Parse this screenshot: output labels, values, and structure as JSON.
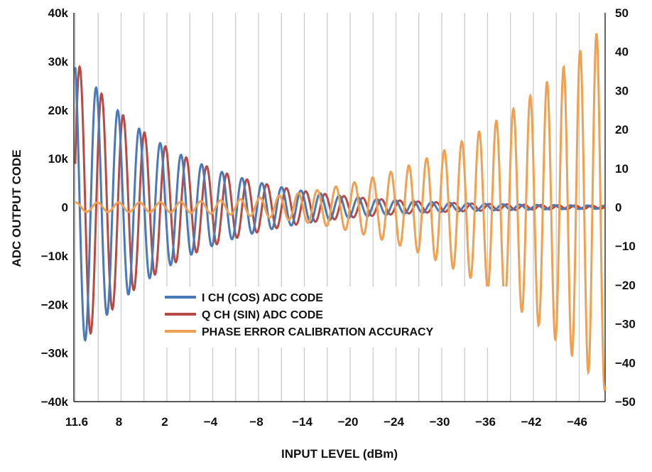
{
  "chart_data": {
    "type": "line",
    "xlabel": "INPUT LEVEL (dBm)",
    "ylabel": "ADC OUTPUT CODE",
    "x_tick_labels": [
      "11.6",
      "8",
      "2",
      "−4",
      "−8",
      "−14",
      "−20",
      "−24",
      "−30",
      "−36",
      "−42",
      "−46"
    ],
    "ylim_left": [
      -40000,
      40000
    ],
    "y_ticks_left": [
      {
        "value": 40000,
        "label": "40k"
      },
      {
        "value": 30000,
        "label": "30k"
      },
      {
        "value": 20000,
        "label": "20k"
      },
      {
        "value": 10000,
        "label": "10k"
      },
      {
        "value": 0,
        "label": "0"
      },
      {
        "value": -10000,
        "label": "−10k"
      },
      {
        "value": -20000,
        "label": "−20k"
      },
      {
        "value": -30000,
        "label": "−30k"
      },
      {
        "value": -40000,
        "label": "−40k"
      }
    ],
    "ylim_right": [
      -50,
      50
    ],
    "y_ticks_right": [
      {
        "value": 50,
        "label": "50"
      },
      {
        "value": 40,
        "label": "40"
      },
      {
        "value": 30,
        "label": "30"
      },
      {
        "value": 20,
        "label": "20"
      },
      {
        "value": 10,
        "label": "10"
      },
      {
        "value": 0,
        "label": "0"
      },
      {
        "value": -10,
        "label": "−10"
      },
      {
        "value": -20,
        "label": "−20"
      },
      {
        "value": -30,
        "label": "−30"
      },
      {
        "value": -40,
        "label": "−40"
      },
      {
        "value": -50,
        "label": "−50"
      }
    ],
    "grid": "vertical",
    "legend_position": "lower-left",
    "series": [
      {
        "name": "I CH (COS) ADC CODE",
        "axis": "left",
        "color": "#4a78b8",
        "description_envelope": "oscillating, decaying from about 30k at 11.6 dBm to near 0 below -24 dBm",
        "peaks": [
          {
            "x_index": 0.2,
            "value": 30000
          },
          {
            "x_index": 0.6,
            "value": 25000
          },
          {
            "x_index": 1.0,
            "value": 19500
          },
          {
            "x_index": 1.6,
            "value": 15500
          },
          {
            "x_index": 2.1,
            "value": 10000
          },
          {
            "x_index": 2.6,
            "value": 7500
          },
          {
            "x_index": 3.1,
            "value": 5500
          },
          {
            "x_index": 3.6,
            "value": 3800
          },
          {
            "x_index": 4.1,
            "value": 2500
          },
          {
            "x_index": 4.6,
            "value": 1500
          },
          {
            "x_index": 5.1,
            "value": 1000
          },
          {
            "x_index": 5.6,
            "value": 600
          }
        ]
      },
      {
        "name": "Q CH (SIN) ADC CODE",
        "axis": "left",
        "color": "#b84a45",
        "description_envelope": "oscillating, in quadrature with I channel, decaying from about 30k to near 0",
        "peaks": [
          {
            "x_index": 0.3,
            "value": 30000
          },
          {
            "x_index": 0.7,
            "value": 25000
          },
          {
            "x_index": 1.1,
            "value": 19500
          },
          {
            "x_index": 1.7,
            "value": 15000
          },
          {
            "x_index": 2.2,
            "value": 10000
          },
          {
            "x_index": 2.7,
            "value": 7500
          },
          {
            "x_index": 3.2,
            "value": 5500
          },
          {
            "x_index": 3.7,
            "value": 3800
          }
        ]
      },
      {
        "name": "PHASE ERROR CALIBRATION ACCURACY",
        "axis": "right",
        "color": "#f0a050",
        "description_envelope": "near 0 at high input level, oscillation growing toward about +/-45 at -46 dBm",
        "peaks": [
          {
            "x_index": 6.5,
            "value": 2
          },
          {
            "x_index": 7.5,
            "value": 3
          },
          {
            "x_index": 8.5,
            "value": 5
          },
          {
            "x_index": 9.0,
            "value": 8
          },
          {
            "x_index": 9.5,
            "value": 10
          },
          {
            "x_index": 10.0,
            "value": 14
          },
          {
            "x_index": 10.5,
            "value": 22
          },
          {
            "x_index": 11.0,
            "value": 25
          },
          {
            "x_index": 11.5,
            "value": 37
          },
          {
            "x_index": 11.8,
            "value": 47
          }
        ]
      }
    ]
  }
}
